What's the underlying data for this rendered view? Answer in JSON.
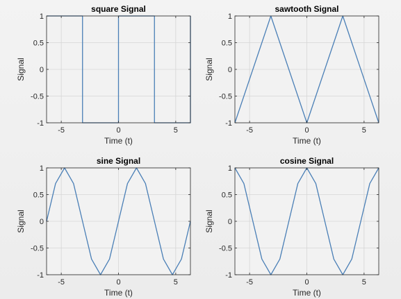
{
  "chart_data": [
    {
      "type": "line",
      "title": "square Signal",
      "xlabel": "Time (t)",
      "ylabel": "Signal",
      "xlim": [
        -6.283,
        6.283
      ],
      "ylim": [
        -1,
        1
      ],
      "xticks": [
        -5,
        0,
        5
      ],
      "yticks": [
        -1,
        -0.5,
        0,
        0.5,
        1
      ],
      "grid": true,
      "color": "#4a7fb6",
      "series": [
        {
          "x": [
            -6.283,
            -3.142,
            -3.142,
            0,
            0,
            3.142,
            3.142,
            6.283,
            6.283
          ],
          "values": [
            1,
            1,
            -1,
            -1,
            1,
            1,
            -1,
            -1,
            1
          ]
        }
      ]
    },
    {
      "type": "line",
      "title": "sawtooth Signal",
      "xlabel": "Time (t)",
      "ylabel": "Signal",
      "xlim": [
        -6.283,
        6.283
      ],
      "ylim": [
        -1,
        1
      ],
      "xticks": [
        -5,
        0,
        5
      ],
      "yticks": [
        -1,
        -0.5,
        0,
        0.5,
        1
      ],
      "grid": true,
      "color": "#4a7fb6",
      "series": [
        {
          "x": [
            -6.283,
            -3.142,
            0,
            3.142,
            6.283
          ],
          "values": [
            -1,
            1,
            -1,
            1,
            -1
          ]
        }
      ]
    },
    {
      "type": "line",
      "title": "sine Signal",
      "xlabel": "Time (t)",
      "ylabel": "Signal",
      "xlim": [
        -6.283,
        6.283
      ],
      "ylim": [
        -1,
        1
      ],
      "xticks": [
        -5,
        0,
        5
      ],
      "yticks": [
        -1,
        -0.5,
        0,
        0.5,
        1
      ],
      "grid": true,
      "color": "#4a7fb6",
      "series": [
        {
          "x": [
            -6.283,
            -5.498,
            -4.712,
            -3.927,
            -3.142,
            -2.356,
            -1.571,
            -0.785,
            0,
            0.785,
            1.571,
            2.356,
            3.142,
            3.927,
            4.712,
            5.498,
            6.283
          ],
          "values": [
            0,
            0.707,
            1,
            0.707,
            0,
            -0.707,
            -1,
            -0.707,
            0,
            0.707,
            1,
            0.707,
            0,
            -0.707,
            -1,
            -0.707,
            0
          ]
        }
      ]
    },
    {
      "type": "line",
      "title": "cosine Signal",
      "xlabel": "Time (t)",
      "ylabel": "Signal",
      "xlim": [
        -6.283,
        6.283
      ],
      "ylim": [
        -1,
        1
      ],
      "xticks": [
        -5,
        0,
        5
      ],
      "yticks": [
        -1,
        -0.5,
        0,
        0.5,
        1
      ],
      "grid": true,
      "color": "#4a7fb6",
      "series": [
        {
          "x": [
            -6.283,
            -5.498,
            -4.712,
            -3.927,
            -3.142,
            -2.356,
            -1.571,
            -0.785,
            0,
            0.785,
            1.571,
            2.356,
            3.142,
            3.927,
            4.712,
            5.498,
            6.283
          ],
          "values": [
            1,
            0.707,
            0,
            -0.707,
            -1,
            -0.707,
            0,
            0.707,
            1,
            0.707,
            0,
            -0.707,
            -1,
            -0.707,
            0,
            0.707,
            1
          ]
        }
      ]
    }
  ]
}
